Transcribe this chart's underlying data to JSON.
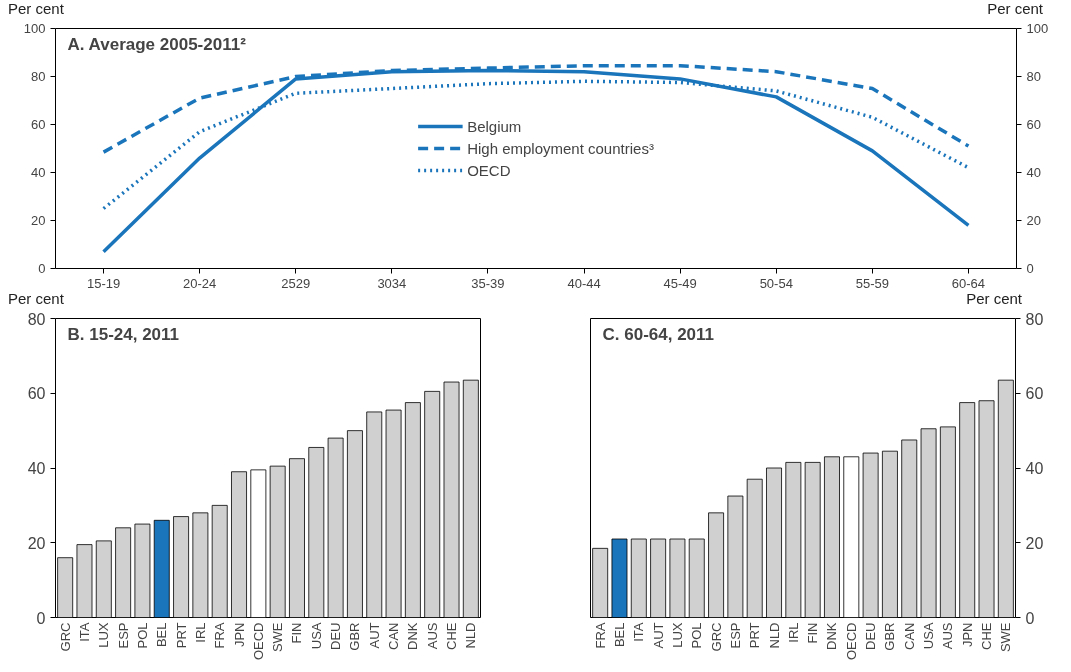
{
  "chart_data": [
    {
      "type": "line",
      "title": "A. Average 2005-2011²",
      "categories": [
        "15-19",
        "20-24",
        "2529",
        "3034",
        "35-39",
        "40-44",
        "45-49",
        "50-54",
        "55-59",
        "60-64"
      ],
      "series": [
        {
          "name": "Belgium",
          "color": "#1b75bb",
          "line_style": "solid",
          "values": [
            7,
            46,
            79,
            82,
            82.5,
            82,
            79,
            71.5,
            49,
            18
          ]
        },
        {
          "name": "High employment countries³",
          "color": "#1b75bb",
          "line_style": "dashed",
          "values": [
            48.5,
            71,
            80,
            82.5,
            83.5,
            84.5,
            84.5,
            82,
            75,
            51
          ]
        },
        {
          "name": "OECD",
          "color": "#1b75bb",
          "line_style": "dotted",
          "values": [
            25,
            57,
            73,
            75,
            77,
            78,
            77.5,
            74,
            63,
            42
          ]
        }
      ],
      "ylabel": "Per cent",
      "y2label": "Per cent",
      "ylim": [
        0,
        100
      ],
      "yticks": [
        0,
        20,
        40,
        60,
        80,
        100
      ],
      "y2lim": [
        0,
        100
      ],
      "y2ticks": [
        0,
        20,
        40,
        60,
        80,
        100
      ],
      "legend": "center"
    },
    {
      "type": "bar",
      "title": "B. 15-24,  2011",
      "categories": [
        "GRC",
        "ITA",
        "LUX",
        "ESP",
        "POL",
        "BEL",
        "PRT",
        "IRL",
        "FRA",
        "JPN",
        "OECD",
        "SWE",
        "FIN",
        "USA",
        "DEU",
        "GBR",
        "AUT",
        "CAN",
        "DNK",
        "AUS",
        "CHE",
        "NLD"
      ],
      "values": [
        16,
        19.5,
        20.5,
        24,
        25,
        26,
        27,
        28,
        30,
        39,
        39.5,
        40.5,
        42.5,
        45.5,
        48,
        50,
        55,
        55.5,
        57.5,
        60.5,
        63,
        63.5
      ],
      "colors": [
        "#d0d0d0",
        "#d0d0d0",
        "#d0d0d0",
        "#d0d0d0",
        "#d0d0d0",
        "#1b75bb",
        "#d0d0d0",
        "#d0d0d0",
        "#d0d0d0",
        "#d0d0d0",
        "#ffffff",
        "#d0d0d0",
        "#d0d0d0",
        "#d0d0d0",
        "#d0d0d0",
        "#d0d0d0",
        "#d0d0d0",
        "#d0d0d0",
        "#d0d0d0",
        "#d0d0d0",
        "#d0d0d0",
        "#d0d0d0"
      ],
      "ylabel": "Per cent",
      "ylim": [
        0,
        80
      ],
      "yticks": [
        0,
        20,
        40,
        60,
        80
      ]
    },
    {
      "type": "bar",
      "title": "C. 60-64, 2011",
      "categories": [
        "FRA",
        "BEL",
        "ITA",
        "AUT",
        "LUX",
        "POL",
        "GRC",
        "ESP",
        "PRT",
        "NLD",
        "IRL",
        "FIN",
        "DNK",
        "OECD",
        "DEU",
        "GBR",
        "CAN",
        "USA",
        "AUS",
        "JPN",
        "CHE",
        "SWE"
      ],
      "series": [
        {
          "axis": "y2",
          "values": [
            18.5,
            21,
            21,
            21,
            21,
            21,
            28,
            32.5,
            37,
            40,
            41.5,
            41.5,
            43,
            43,
            44,
            44.5,
            47.5,
            50.5,
            51,
            57.5,
            58,
            63.5
          ],
          "colors": [
            "#d0d0d0",
            "#1b75bb",
            "#d0d0d0",
            "#d0d0d0",
            "#d0d0d0",
            "#d0d0d0",
            "#d0d0d0",
            "#d0d0d0",
            "#d0d0d0",
            "#d0d0d0",
            "#d0d0d0",
            "#d0d0d0",
            "#d0d0d0",
            "#ffffff",
            "#d0d0d0",
            "#d0d0d0",
            "#d0d0d0",
            "#d0d0d0",
            "#d0d0d0",
            "#d0d0d0",
            "#d0d0d0",
            "#d0d0d0"
          ]
        }
      ],
      "y2label": "Per cent",
      "y2lim": [
        0,
        80
      ],
      "y2ticks": [
        0,
        20,
        40,
        60,
        80
      ]
    }
  ]
}
